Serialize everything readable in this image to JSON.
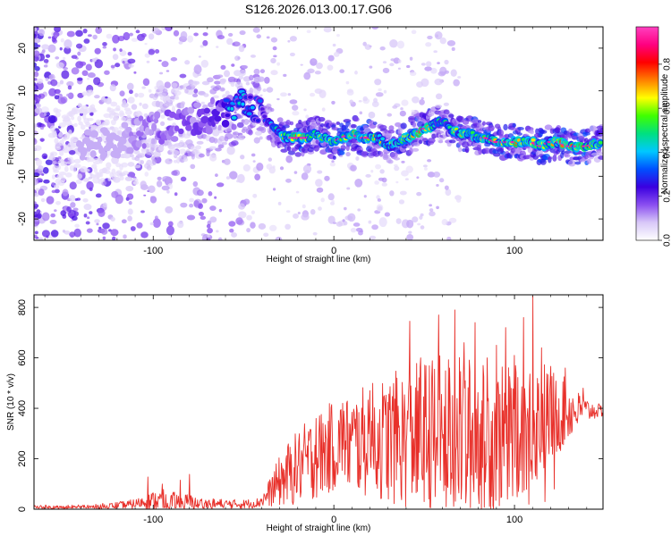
{
  "title": "S126.2026.013.00.17.G06",
  "chart_data": [
    {
      "type": "heatmap",
      "name": "spectrogram",
      "xlabel": "Height of straight line (km)",
      "ylabel": "Frequency (Hz)",
      "xlim": [
        -166,
        149
      ],
      "ylim": [
        -25,
        25
      ],
      "xticks": [
        "-100",
        "0",
        "100"
      ],
      "xtick_values": [
        -100,
        0,
        100
      ],
      "yticks": [
        "-20",
        "-10",
        "0",
        "10",
        "20"
      ],
      "ytick_values": [
        -20,
        -10,
        0,
        10,
        20
      ],
      "colorbar": {
        "label": "Normalized spectral amplitude",
        "ticks": [
          "0.0",
          "0.2",
          "0.4",
          "0.6",
          "0.8"
        ],
        "tick_values": [
          0.0,
          0.2,
          0.4,
          0.6,
          0.8
        ],
        "range": [
          0,
          0.97
        ],
        "colors": [
          "#ffffff",
          "#d8c8f8",
          "#8a4ef0",
          "#3a00e0",
          "#0050ff",
          "#00c8ff",
          "#00e080",
          "#40ff00",
          "#ffff00",
          "#ff8000",
          "#ff0000",
          "#ff0080",
          "#ff40c0"
        ]
      },
      "ridge": {
        "x": [
          -166,
          -140,
          -120,
          -110,
          -100,
          -90,
          -80,
          -70,
          -60,
          -52,
          -46,
          -40,
          -38,
          -34,
          -30,
          -26,
          -22,
          -18,
          -14,
          -10,
          -5,
          0,
          5,
          10,
          15,
          20,
          25,
          30,
          35,
          40,
          45,
          50,
          55,
          60,
          65,
          70,
          75,
          80,
          85,
          90,
          95,
          100,
          105,
          110,
          115,
          120,
          125,
          130,
          135,
          140,
          149
        ],
        "freq": [
          -4,
          -3,
          -2,
          0,
          1,
          2,
          3,
          4,
          5,
          7,
          7,
          6,
          3,
          2,
          0,
          -1,
          -1,
          -1,
          -1,
          0,
          -1,
          -2,
          -1,
          0,
          -1,
          -1,
          -1,
          -3,
          -2,
          -1,
          0,
          1,
          2,
          3,
          1,
          0,
          0,
          -1,
          -1,
          -2,
          -2,
          -2,
          -2,
          -2,
          -3,
          -2,
          -2,
          -3,
          -3,
          -3,
          -2
        ],
        "amplitude": [
          0.05,
          0.1,
          0.18,
          0.25,
          0.3,
          0.32,
          0.34,
          0.38,
          0.45,
          0.55,
          0.5,
          0.45,
          0.4,
          0.5,
          0.7,
          0.8,
          0.9,
          0.92,
          0.88,
          0.7,
          0.8,
          0.85,
          0.9,
          0.8,
          0.9,
          0.85,
          0.8,
          0.7,
          0.75,
          0.8,
          0.85,
          0.9,
          0.7,
          0.6,
          0.75,
          0.8,
          0.85,
          0.8,
          0.9,
          0.85,
          0.9,
          0.88,
          0.8,
          0.85,
          0.9,
          0.85,
          0.88,
          0.9,
          0.92,
          0.9,
          0.7
        ]
      }
    },
    {
      "type": "line",
      "name": "snr",
      "xlabel": "Height of straight line (km)",
      "ylabel": "SNR (10 * v/v)",
      "xlim": [
        -166,
        149
      ],
      "ylim": [
        0,
        850
      ],
      "xticks": [
        "-100",
        "0",
        "100"
      ],
      "xtick_values": [
        -100,
        0,
        100
      ],
      "yticks": [
        "0",
        "200",
        "400",
        "600",
        "800"
      ],
      "ytick_values": [
        0,
        200,
        400,
        600,
        800
      ],
      "color": "#e8302a",
      "envelope": {
        "x": [
          -166,
          -150,
          -130,
          -115,
          -108,
          -100,
          -95,
          -90,
          -85,
          -80,
          -75,
          -70,
          -60,
          -50,
          -42,
          -38,
          -34,
          -30,
          -25,
          -20,
          -15,
          -10,
          -5,
          0,
          10,
          20,
          30,
          40,
          45,
          50,
          55,
          60,
          65,
          70,
          75,
          80,
          85,
          90,
          95,
          100,
          105,
          110,
          115,
          120,
          125,
          130,
          135,
          140,
          145,
          149
        ],
        "base": [
          5,
          5,
          8,
          15,
          25,
          35,
          30,
          25,
          25,
          25,
          22,
          20,
          20,
          20,
          25,
          45,
          80,
          110,
          140,
          165,
          190,
          210,
          230,
          250,
          260,
          270,
          280,
          280,
          280,
          280,
          280,
          290,
          290,
          290,
          290,
          285,
          285,
          280,
          290,
          300,
          320,
          340,
          360,
          380,
          380,
          390,
          390,
          390,
          390,
          390
        ],
        "amp": [
          12,
          12,
          14,
          18,
          20,
          35,
          50,
          45,
          40,
          35,
          30,
          25,
          20,
          18,
          20,
          35,
          70,
          100,
          130,
          150,
          160,
          170,
          180,
          180,
          200,
          230,
          260,
          280,
          300,
          320,
          330,
          330,
          330,
          320,
          320,
          300,
          300,
          290,
          280,
          270,
          260,
          260,
          240,
          200,
          160,
          120,
          80,
          50,
          30,
          25
        ]
      },
      "peaks": [
        {
          "x": 110,
          "y": 845
        },
        {
          "x": 67,
          "y": 790
        },
        {
          "x": 58,
          "y": 770
        },
        {
          "x": 105,
          "y": 760
        },
        {
          "x": 42,
          "y": 745
        },
        {
          "x": 78,
          "y": 740
        },
        {
          "x": 95,
          "y": 720
        },
        {
          "x": 72,
          "y": 660
        },
        {
          "x": 115,
          "y": 640
        },
        {
          "x": 85,
          "y": 600
        },
        {
          "x": 128,
          "y": 560
        },
        {
          "x": 138,
          "y": 480
        },
        {
          "x": 20,
          "y": 470
        },
        {
          "x": 28,
          "y": 450
        },
        {
          "x": 35,
          "y": 520
        },
        {
          "x": 48,
          "y": 600
        },
        {
          "x": 90,
          "y": 650
        },
        {
          "x": 100,
          "y": 610
        },
        {
          "x": -103,
          "y": 128
        },
        {
          "x": -80,
          "y": 138
        },
        {
          "x": -95,
          "y": 100
        },
        {
          "x": -85,
          "y": 115
        },
        {
          "x": -10,
          "y": 360
        },
        {
          "x": 5,
          "y": 420
        }
      ],
      "troughs": [
        {
          "x": 50,
          "y": 30
        },
        {
          "x": 62,
          "y": 10
        },
        {
          "x": 73,
          "y": 25
        },
        {
          "x": 80,
          "y": 60
        },
        {
          "x": 88,
          "y": 15
        },
        {
          "x": 96,
          "y": 40
        },
        {
          "x": 102,
          "y": 70
        },
        {
          "x": 108,
          "y": 20
        },
        {
          "x": 117,
          "y": 30
        },
        {
          "x": 122,
          "y": 80
        },
        {
          "x": 44,
          "y": 110
        },
        {
          "x": 56,
          "y": 50
        }
      ]
    }
  ]
}
